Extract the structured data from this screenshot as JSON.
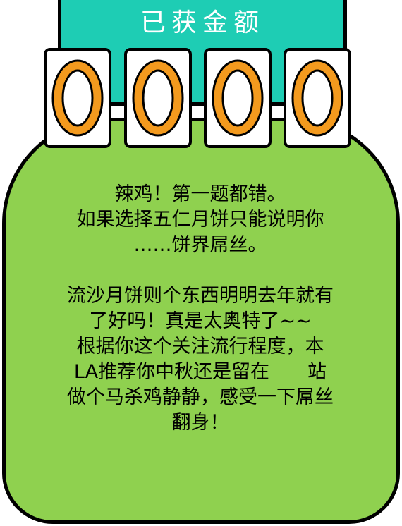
{
  "header": {
    "title": "已获金额"
  },
  "amount": {
    "digits": [
      "0",
      "0",
      "0",
      "0"
    ]
  },
  "message": {
    "paragraph1": [
      "辣鸡！第一题都错。",
      "如果选择五仁月饼只能说明你",
      "……饼界屌丝。"
    ],
    "paragraph2": [
      "流沙月饼则个东西明明去年就有",
      "了好吗！真是太奥特了~~",
      "根据你这个关注流行程度，本",
      "LA推荐你中秋还是留在　　站",
      "做个马杀鸡静静，感受一下屌丝",
      "翻身！"
    ]
  },
  "colors": {
    "header_bg": "#1ecdb4",
    "bubble_bg": "#8fd14f",
    "digit_ring": "#f39a1e",
    "outline": "#000000"
  }
}
